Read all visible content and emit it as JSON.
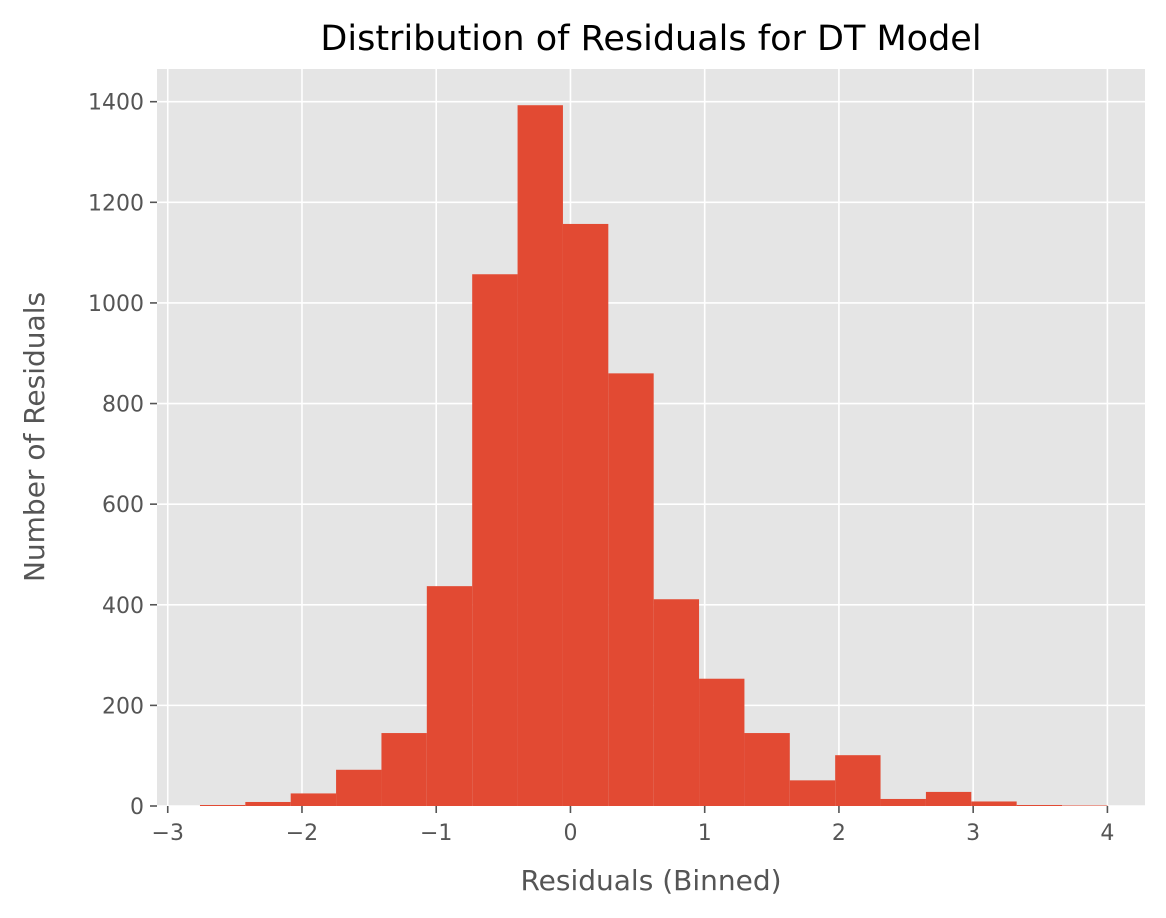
{
  "chart_data": {
    "type": "bar",
    "title": "Distribution of Residuals for DT Model",
    "xlabel": "Residuals (Binned)",
    "ylabel": "Number of Residuals",
    "xlim": [
      -3.08,
      4.28
    ],
    "ylim": [
      0,
      1465
    ],
    "grid": true,
    "x_ticks": [
      -3,
      -2,
      -1,
      0,
      1,
      2,
      3,
      4
    ],
    "x_tick_labels": [
      "−3",
      "−2",
      "−1",
      "0",
      "1",
      "2",
      "3",
      "4"
    ],
    "y_ticks": [
      0,
      200,
      400,
      600,
      800,
      1000,
      1200,
      1400
    ],
    "y_tick_labels": [
      "0",
      "200",
      "400",
      "600",
      "800",
      "1000",
      "1200",
      "1400"
    ],
    "bins": {
      "start": -2.76,
      "width": 0.338,
      "counts": [
        2,
        8,
        25,
        72,
        145,
        437,
        1057,
        1393,
        1157,
        860,
        411,
        253,
        145,
        51,
        101,
        14,
        28,
        9,
        2,
        1
      ]
    },
    "colors": {
      "bar": "#E24A33",
      "background": "#E5E5E5",
      "grid": "#FFFFFF",
      "tick": "#555555"
    }
  }
}
